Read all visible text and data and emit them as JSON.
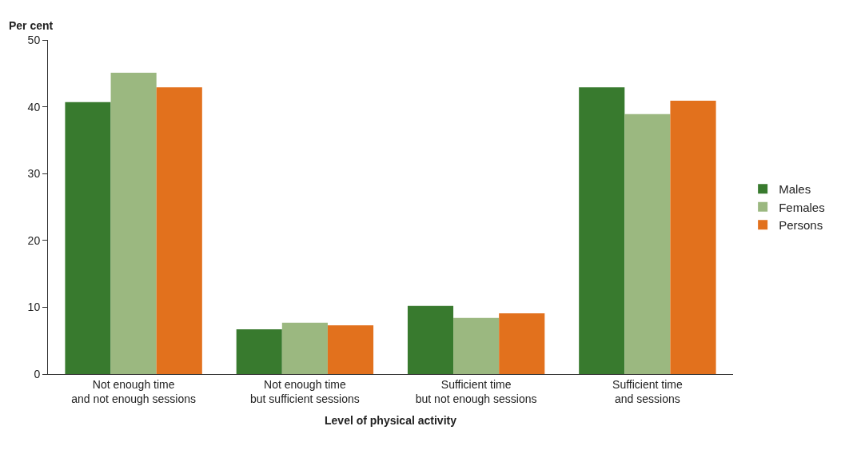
{
  "chart_data": {
    "type": "bar",
    "ylabel": "Per cent",
    "xlabel": "Level of physical activity",
    "categories": [
      "Not enough time\nand not enough sessions",
      "Not enough time\nbut sufficient sessions",
      "Sufficient time\nbut not enough sessions",
      "Sufficient time\nand sessions"
    ],
    "series": [
      {
        "name": "Males",
        "color": "#387a2e",
        "values": [
          40.7,
          6.7,
          10.2,
          42.9
        ]
      },
      {
        "name": "Females",
        "color": "#9bb880",
        "values": [
          45.1,
          7.7,
          8.4,
          38.9
        ]
      },
      {
        "name": "Persons",
        "color": "#e2711d",
        "values": [
          42.9,
          7.3,
          9.1,
          40.9
        ]
      }
    ],
    "ylim": [
      0,
      50
    ],
    "yticks": [
      0,
      10,
      20,
      30,
      40,
      50
    ],
    "legend": "right"
  }
}
